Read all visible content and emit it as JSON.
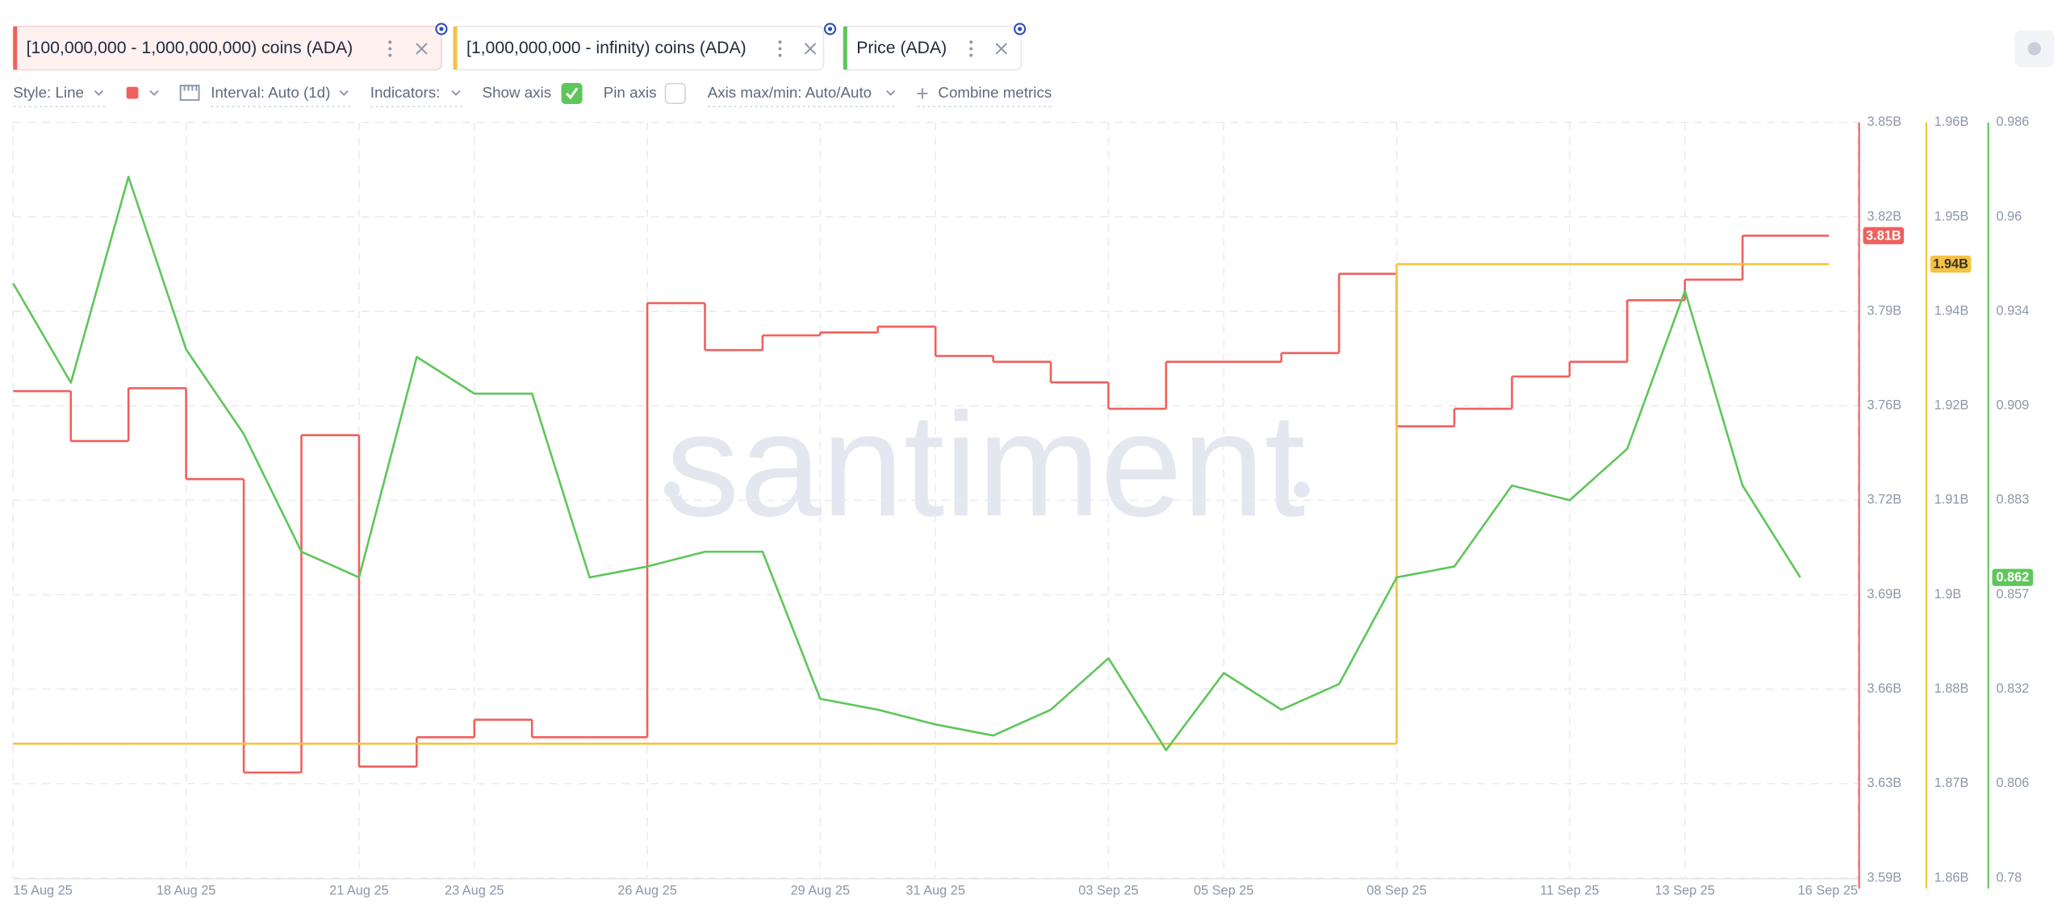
{
  "toolbar": {
    "style": "Style: Line",
    "interval": "Interval: Auto (1d)",
    "indicators": "Indicators:",
    "show_axis": "Show axis",
    "pin_axis": "Pin axis",
    "axis_minmax": "Axis max/min: Auto/Auto",
    "combine": "Combine metrics"
  },
  "watermark": "santiment",
  "chart_data": {
    "type": "line",
    "grid": true,
    "x": [
      "2025-08-15",
      "2025-08-16",
      "2025-08-17",
      "2025-08-18",
      "2025-08-19",
      "2025-08-20",
      "2025-08-21",
      "2025-08-22",
      "2025-08-23",
      "2025-08-24",
      "2025-08-25",
      "2025-08-26",
      "2025-08-27",
      "2025-08-28",
      "2025-08-29",
      "2025-08-30",
      "2025-08-31",
      "2025-09-01",
      "2025-09-02",
      "2025-09-03",
      "2025-09-04",
      "2025-09-05",
      "2025-09-06",
      "2025-09-07",
      "2025-09-08",
      "2025-09-09",
      "2025-09-10",
      "2025-09-11",
      "2025-09-12",
      "2025-09-13",
      "2025-09-14",
      "2025-09-15"
    ],
    "xlim": [
      "2025-08-15",
      "2025-09-16"
    ],
    "xticks": [
      {
        "value": "2025-08-15",
        "label": "15 Aug 25"
      },
      {
        "value": "2025-08-18",
        "label": "18 Aug 25"
      },
      {
        "value": "2025-08-21",
        "label": "21 Aug 25"
      },
      {
        "value": "2025-08-23",
        "label": "23 Aug 25"
      },
      {
        "value": "2025-08-26",
        "label": "26 Aug 25"
      },
      {
        "value": "2025-08-29",
        "label": "29 Aug 25"
      },
      {
        "value": "2025-08-31",
        "label": "31 Aug 25"
      },
      {
        "value": "2025-09-03",
        "label": "03 Sep 25"
      },
      {
        "value": "2025-09-05",
        "label": "05 Sep 25"
      },
      {
        "value": "2025-09-08",
        "label": "08 Sep 25"
      },
      {
        "value": "2025-09-11",
        "label": "11 Sep 25"
      },
      {
        "value": "2025-09-13",
        "label": "13 Sep 25"
      },
      {
        "value": "2025-09-16",
        "label": "16 Sep 25"
      }
    ],
    "ylim": [
      3.595,
      3.8526
    ],
    "yticks": [
      {
        "value": 3.595,
        "label": "3.59B"
      },
      {
        "value": 3.6272,
        "label": "3.63B"
      },
      {
        "value": 3.6594,
        "label": "3.66B"
      },
      {
        "value": 3.6916,
        "label": "3.69B"
      },
      {
        "value": 3.7238,
        "label": "3.72B"
      },
      {
        "value": 3.756,
        "label": "3.76B"
      },
      {
        "value": 3.7882,
        "label": "3.79B"
      },
      {
        "value": 3.8204,
        "label": "3.82B"
      },
      {
        "value": 3.8526,
        "label": "3.85B"
      }
    ],
    "y2lim": [
      1.8575,
      1.9615
    ],
    "y2ticks": [
      {
        "value": 1.8575,
        "label": "1.86B"
      },
      {
        "value": 1.8705,
        "label": "1.87B"
      },
      {
        "value": 1.8835,
        "label": "1.88B"
      },
      {
        "value": 1.8965,
        "label": "1.9B"
      },
      {
        "value": 1.9095,
        "label": "1.91B"
      },
      {
        "value": 1.9225,
        "label": "1.92B"
      },
      {
        "value": 1.9355,
        "label": "1.94B"
      },
      {
        "value": 1.9485,
        "label": "1.95B"
      },
      {
        "value": 1.9615,
        "label": "1.96B"
      }
    ],
    "y3lim": [
      0.7802,
      0.9858
    ],
    "y3ticks": [
      {
        "value": 0.7802,
        "label": "0.78"
      },
      {
        "value": 0.8059,
        "label": "0.806"
      },
      {
        "value": 0.8316,
        "label": "0.832"
      },
      {
        "value": 0.8573,
        "label": "0.857"
      },
      {
        "value": 0.883,
        "label": "0.883"
      },
      {
        "value": 0.9087,
        "label": "0.909"
      },
      {
        "value": 0.9344,
        "label": "0.934"
      },
      {
        "value": 0.9601,
        "label": "0.96"
      },
      {
        "value": 0.9858,
        "label": "0.986"
      }
    ],
    "series": [
      {
        "name": "[100,000,000 - 1,000,000,000) coins (ADA)",
        "color": "#f0605d",
        "axis": "y",
        "step": true,
        "values": [
          3.761,
          3.744,
          3.762,
          3.731,
          3.631,
          3.746,
          3.633,
          3.643,
          3.649,
          3.643,
          3.643,
          3.791,
          3.775,
          3.78,
          3.781,
          3.783,
          3.773,
          3.771,
          3.764,
          3.755,
          3.771,
          3.771,
          3.774,
          3.801,
          3.749,
          3.755,
          3.766,
          3.771,
          3.792,
          3.799,
          3.814,
          3.814
        ],
        "value_labels": [
          null,
          null,
          null,
          null,
          null,
          null,
          null,
          null,
          null,
          null,
          null,
          null,
          null,
          null,
          null,
          null,
          null,
          null,
          null,
          null,
          null,
          null,
          null,
          null,
          null,
          null,
          null,
          null,
          null,
          null,
          null,
          "3.81B"
        ]
      },
      {
        "name": "[1,000,000,000 - infinity) coins (ADA)",
        "color": "#f5c244",
        "axis": "y2",
        "step": true,
        "values": [
          1.876,
          1.876,
          1.876,
          1.876,
          1.876,
          1.876,
          1.876,
          1.876,
          1.876,
          1.876,
          1.876,
          1.876,
          1.876,
          1.876,
          1.876,
          1.876,
          1.876,
          1.876,
          1.876,
          1.876,
          1.876,
          1.876,
          1.876,
          1.876,
          1.942,
          1.942,
          1.942,
          1.942,
          1.942,
          1.942,
          1.942,
          1.942
        ],
        "value_labels": [
          null,
          null,
          null,
          null,
          null,
          null,
          null,
          null,
          null,
          null,
          null,
          null,
          null,
          null,
          null,
          null,
          null,
          null,
          null,
          null,
          null,
          null,
          null,
          null,
          null,
          null,
          null,
          null,
          null,
          null,
          null,
          "1.94B"
        ]
      },
      {
        "name": "Price (ADA)",
        "color": "#5ec65b",
        "axis": "y3",
        "step": false,
        "values": [
          0.942,
          0.915,
          0.971,
          0.924,
          0.901,
          0.869,
          0.862,
          0.922,
          0.912,
          0.912,
          0.862,
          0.865,
          0.869,
          0.869,
          0.829,
          0.826,
          0.822,
          0.819,
          0.826,
          0.84,
          0.815,
          0.836,
          0.826,
          0.833,
          0.862,
          0.865,
          0.887,
          0.883,
          0.897,
          0.94,
          0.887,
          0.862
        ],
        "value_labels": [
          null,
          null,
          null,
          null,
          null,
          null,
          null,
          null,
          null,
          null,
          null,
          null,
          null,
          null,
          null,
          null,
          null,
          null,
          null,
          null,
          null,
          null,
          null,
          null,
          null,
          null,
          null,
          null,
          null,
          null,
          null,
          "0.862"
        ]
      }
    ]
  }
}
